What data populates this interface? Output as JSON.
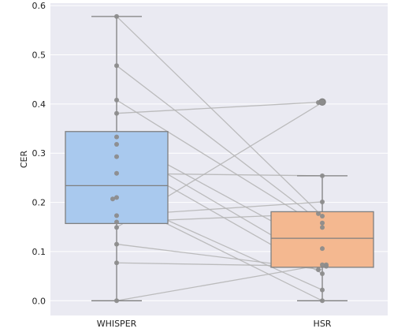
{
  "chart_data": {
    "type": "box",
    "title": "",
    "xlabel": "",
    "ylabel": "CER",
    "categories": [
      "WHISPER",
      "HSR"
    ],
    "ylim": [
      -0.03,
      0.605
    ],
    "yticks": [
      "0.0",
      "0.1",
      "0.2",
      "0.3",
      "0.4",
      "0.5",
      "0.6"
    ],
    "grid": true,
    "legend": "none",
    "colors": {
      "background": "#eaeaf2",
      "grid": "#ffffff",
      "box_whisper": "#a9c9ee",
      "box_hsr": "#f4b890",
      "box_edge": "#7f7f7f",
      "point": "#8c8c8c",
      "pair_line": "#b3b3b3"
    },
    "boxes": [
      {
        "category": "WHISPER",
        "whisker_low": 0.0,
        "q1": 0.157,
        "median": 0.234,
        "q3": 0.344,
        "whisker_high": 0.578
      },
      {
        "category": "HSR",
        "whisker_low": 0.0,
        "q1": 0.068,
        "median": 0.127,
        "q3": 0.181,
        "whisker_high": 0.254
      }
    ],
    "outliers": [
      {
        "category": "HSR",
        "value": 0.404
      }
    ],
    "pairs": [
      {
        "WHISPER": 0.578,
        "HSR": 0.172
      },
      {
        "WHISPER": 0.478,
        "HSR": 0.158
      },
      {
        "WHISPER": 0.408,
        "HSR": 0.149
      },
      {
        "WHISPER": 0.381,
        "HSR": 0.404
      },
      {
        "WHISPER": 0.333,
        "HSR": 0.106
      },
      {
        "WHISPER": 0.318,
        "HSR": 0.073
      },
      {
        "WHISPER": 0.293,
        "HSR": 0.055
      },
      {
        "WHISPER": 0.259,
        "HSR": 0.254
      },
      {
        "WHISPER": 0.21,
        "HSR": 0.022
      },
      {
        "WHISPER": 0.207,
        "HSR": 0.0
      },
      {
        "WHISPER": 0.173,
        "HSR": 0.201
      },
      {
        "WHISPER": 0.16,
        "HSR": 0.177
      },
      {
        "WHISPER": 0.149,
        "HSR": 0.403
      },
      {
        "WHISPER": 0.115,
        "HSR": 0.063
      },
      {
        "WHISPER": 0.077,
        "HSR": 0.07
      },
      {
        "WHISPER": 0.0,
        "HSR": 0.073
      }
    ]
  }
}
